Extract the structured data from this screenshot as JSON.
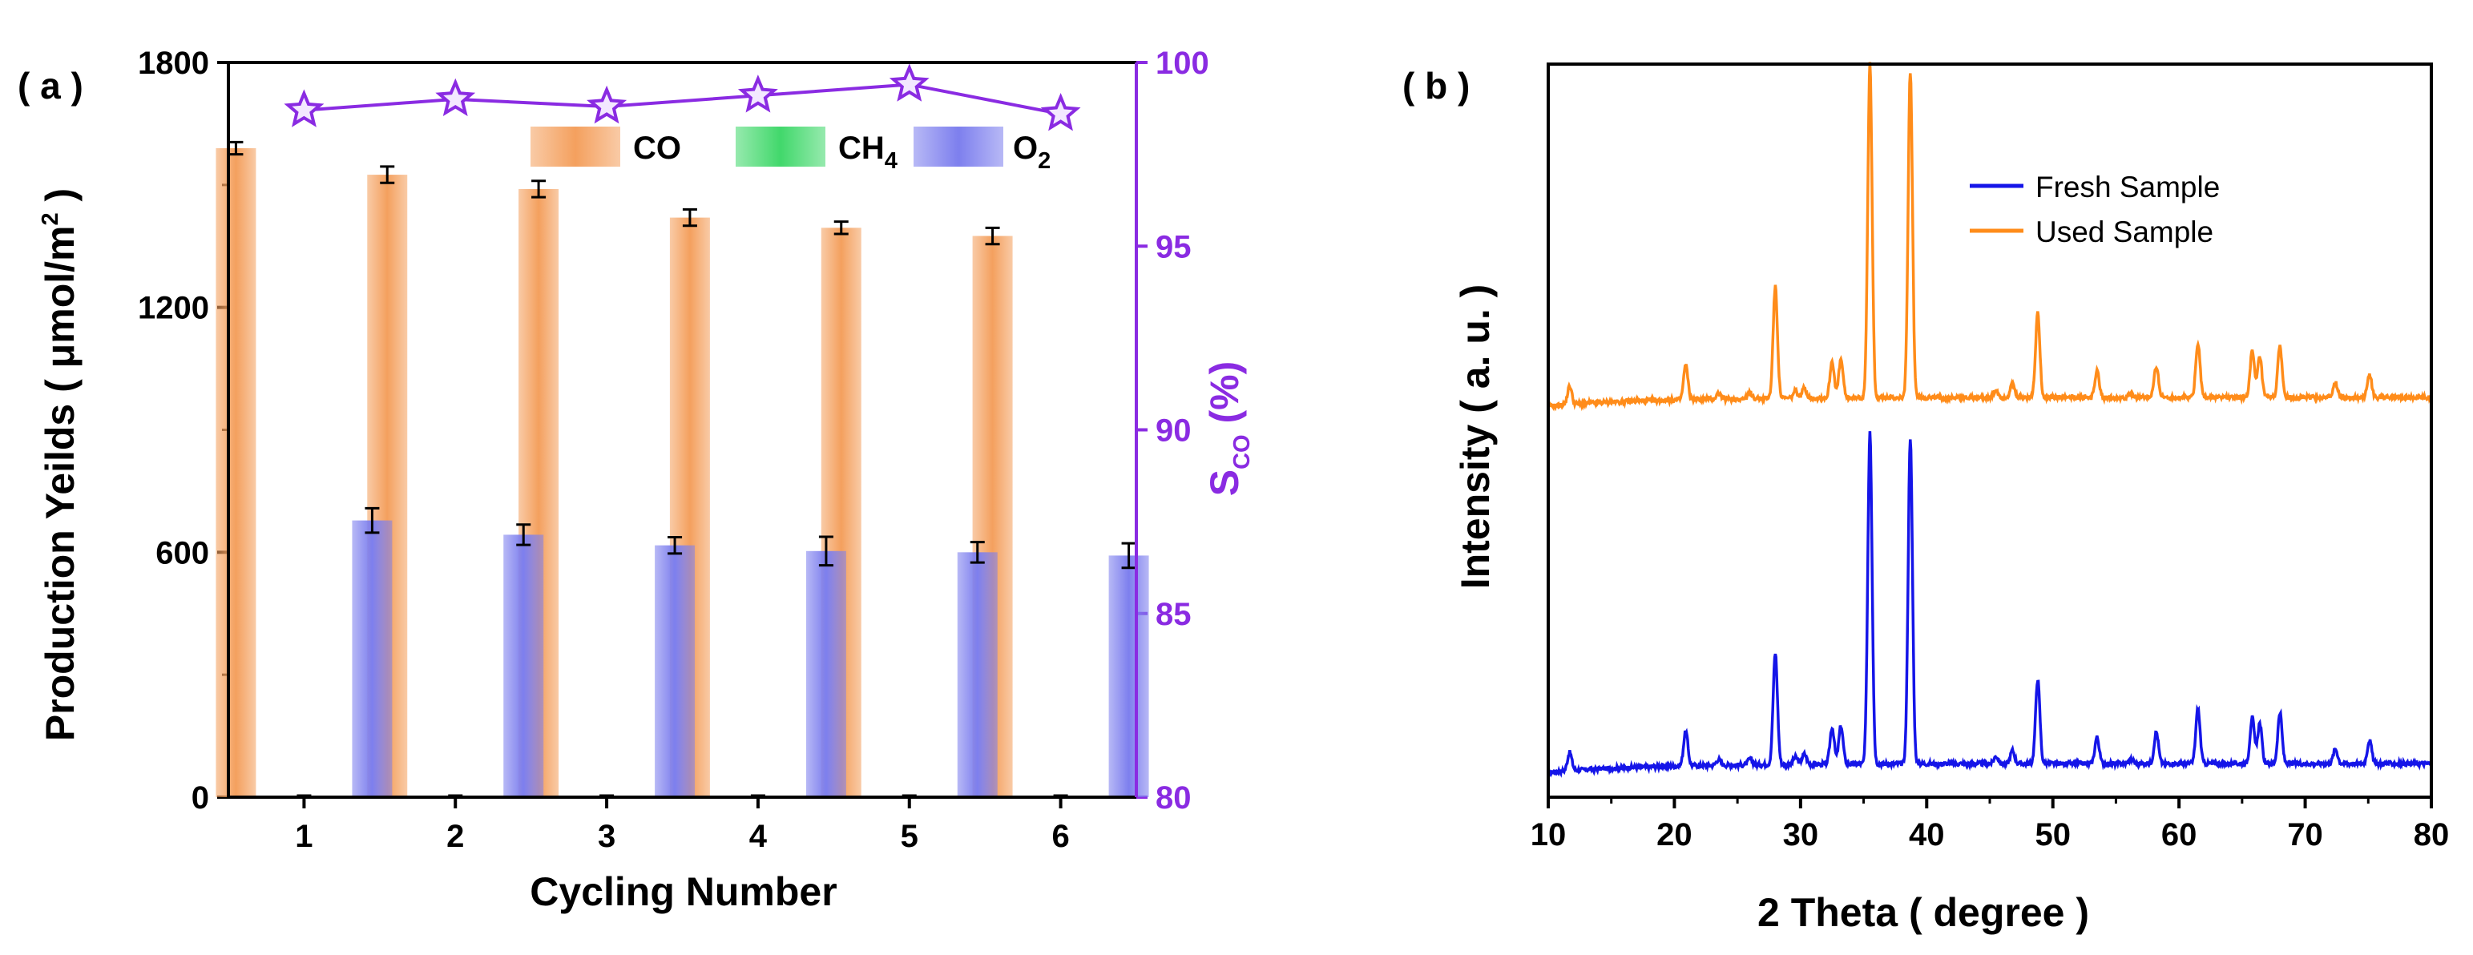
{
  "chart_data": [
    {
      "panel_label": "( a )",
      "type": "bar",
      "xlabel": "Cycling Number",
      "ylabel_parts": [
        "Production Yeilds ( μmol/m",
        "2",
        " )"
      ],
      "y2label_parts": [
        "S",
        "CO",
        " (%)"
      ],
      "categories": [
        "1",
        "2",
        "3",
        "4",
        "5",
        "6"
      ],
      "ylim": [
        0,
        1800
      ],
      "yticks": [
        "0",
        "600",
        "1200",
        "1800"
      ],
      "y2lim": [
        80,
        100
      ],
      "y2ticks": [
        "80",
        "85",
        "90",
        "95",
        "100"
      ],
      "series": [
        {
          "name": "CO",
          "legend_parts": [
            "CO",
            ""
          ],
          "color": "#f4a05e",
          "values": [
            1590,
            1525,
            1490,
            1420,
            1395,
            1375
          ],
          "errors": [
            15,
            20,
            20,
            20,
            15,
            20
          ]
        },
        {
          "name": "CH4",
          "legend_parts": [
            "CH",
            "4"
          ],
          "color": "#41d86b",
          "values": [
            0,
            0,
            0,
            0,
            0,
            0
          ],
          "errors": [
            0,
            0,
            0,
            0,
            0,
            0
          ]
        },
        {
          "name": "O2",
          "legend_parts": [
            "O",
            "2"
          ],
          "color": "#7d7fee",
          "values": [
            678,
            643,
            617,
            603,
            600,
            592
          ],
          "errors": [
            30,
            25,
            20,
            35,
            25,
            30
          ]
        }
      ],
      "line_series": {
        "name": "S_CO",
        "axis": "right",
        "marker": "star",
        "color": "#8a2be2",
        "values": [
          98.7,
          99.0,
          98.8,
          99.1,
          99.4,
          98.6
        ]
      }
    },
    {
      "panel_label": "( b )",
      "type": "line",
      "xlabel": "2 Theta ( degree )",
      "ylabel": "Intensity ( a. u. )",
      "xlim": [
        10,
        80
      ],
      "xticks": [
        "10",
        "20",
        "30",
        "40",
        "50",
        "60",
        "70",
        "80"
      ],
      "series": [
        {
          "name": "Fresh Sample",
          "color": "#1515e8",
          "offset": 0
        },
        {
          "name": "Used Sample",
          "color": "#ff8c1a",
          "offset": 1
        }
      ],
      "peaks": [
        {
          "x": 11.7,
          "h": 0.025
        },
        {
          "x": 20.9,
          "h": 0.047
        },
        {
          "x": 23.5,
          "h": 0.008
        },
        {
          "x": 26.0,
          "h": 0.008
        },
        {
          "x": 28.0,
          "h": 0.152
        },
        {
          "x": 29.6,
          "h": 0.01
        },
        {
          "x": 30.3,
          "h": 0.014
        },
        {
          "x": 32.5,
          "h": 0.05
        },
        {
          "x": 33.2,
          "h": 0.052
        },
        {
          "x": 35.5,
          "h": 0.455
        },
        {
          "x": 38.7,
          "h": 0.445
        },
        {
          "x": 45.5,
          "h": 0.01
        },
        {
          "x": 46.8,
          "h": 0.018
        },
        {
          "x": 48.8,
          "h": 0.115
        },
        {
          "x": 53.5,
          "h": 0.036
        },
        {
          "x": 56.2,
          "h": 0.006
        },
        {
          "x": 58.2,
          "h": 0.043
        },
        {
          "x": 61.5,
          "h": 0.075
        },
        {
          "x": 65.8,
          "h": 0.063
        },
        {
          "x": 66.4,
          "h": 0.055
        },
        {
          "x": 68.0,
          "h": 0.069
        },
        {
          "x": 72.4,
          "h": 0.02
        },
        {
          "x": 75.1,
          "h": 0.032
        }
      ]
    }
  ]
}
